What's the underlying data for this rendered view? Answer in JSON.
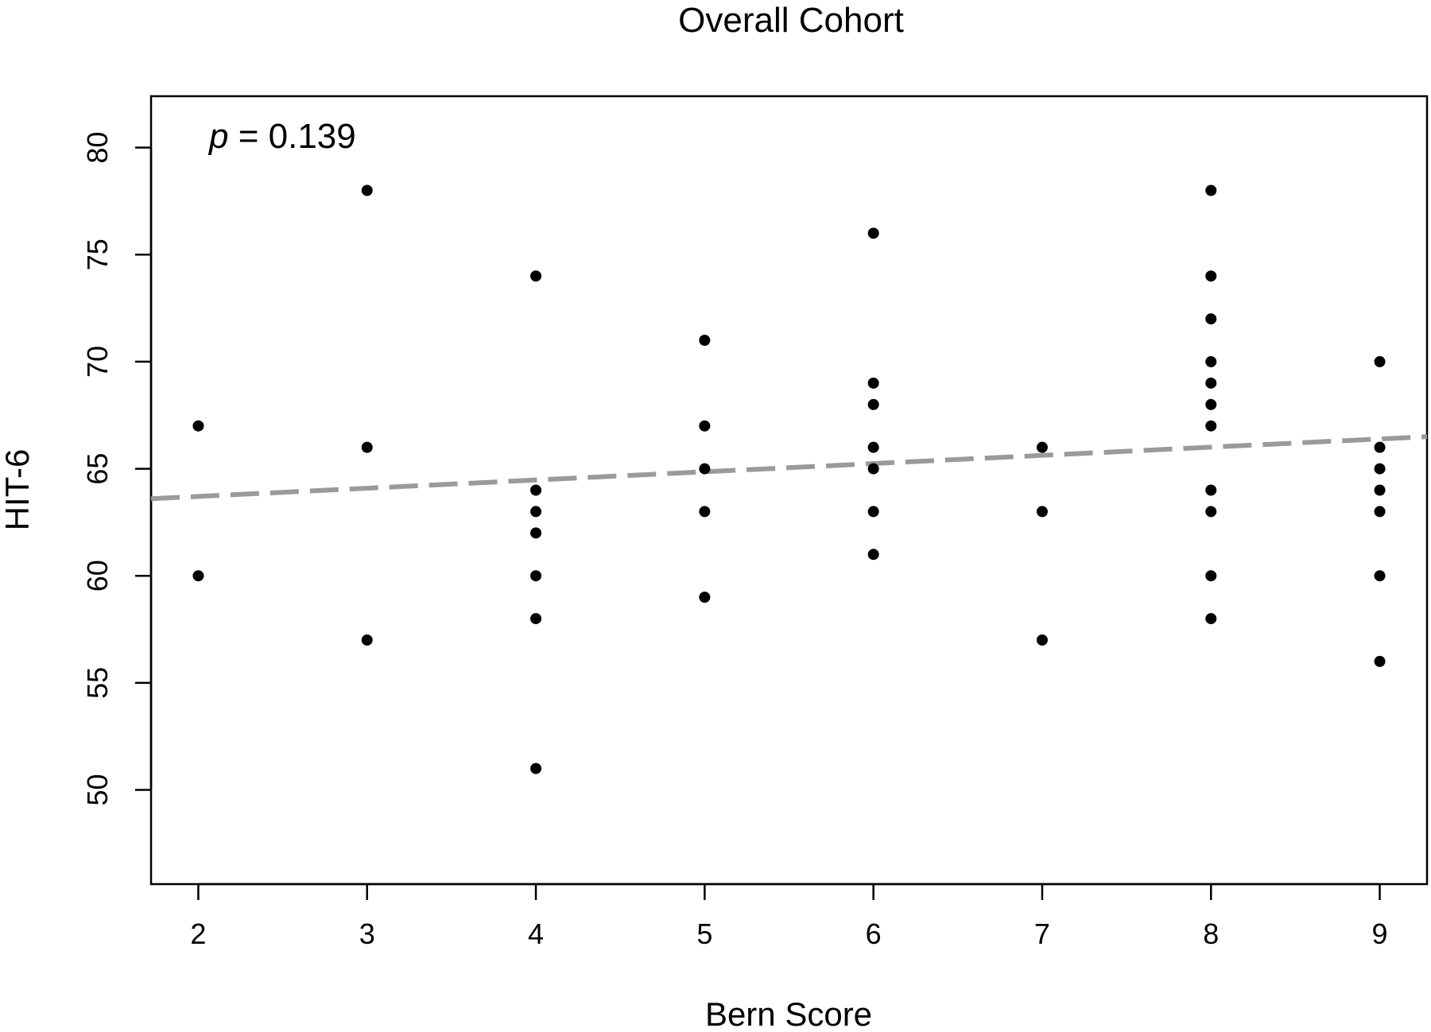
{
  "chart_data": {
    "type": "scatter",
    "title": "Overall Cohort",
    "xlabel": "Bern Score",
    "ylabel": "HIT-6",
    "annotation": {
      "italic": "p",
      "text": " = 0.139"
    },
    "xlim": [
      1.72,
      9.28
    ],
    "ylim": [
      45.6,
      82.4
    ],
    "x_ticks": [
      2,
      3,
      4,
      5,
      6,
      7,
      8,
      9
    ],
    "y_ticks": [
      50,
      55,
      60,
      65,
      70,
      75,
      80
    ],
    "grid": false,
    "trend_line": {
      "style": "dashed",
      "color": "#9a9a9a",
      "start": [
        1.72,
        63.6
      ],
      "end": [
        9.28,
        66.5
      ]
    },
    "points": [
      {
        "x": 2,
        "y": 67
      },
      {
        "x": 2,
        "y": 60
      },
      {
        "x": 3,
        "y": 78
      },
      {
        "x": 3,
        "y": 66
      },
      {
        "x": 3,
        "y": 57
      },
      {
        "x": 4,
        "y": 74
      },
      {
        "x": 4,
        "y": 64
      },
      {
        "x": 4,
        "y": 63
      },
      {
        "x": 4,
        "y": 62
      },
      {
        "x": 4,
        "y": 60
      },
      {
        "x": 4,
        "y": 58
      },
      {
        "x": 4,
        "y": 51
      },
      {
        "x": 5,
        "y": 71
      },
      {
        "x": 5,
        "y": 67
      },
      {
        "x": 5,
        "y": 65
      },
      {
        "x": 5,
        "y": 63
      },
      {
        "x": 5,
        "y": 59
      },
      {
        "x": 6,
        "y": 76
      },
      {
        "x": 6,
        "y": 69
      },
      {
        "x": 6,
        "y": 68
      },
      {
        "x": 6,
        "y": 66
      },
      {
        "x": 6,
        "y": 65
      },
      {
        "x": 6,
        "y": 63
      },
      {
        "x": 6,
        "y": 61
      },
      {
        "x": 7,
        "y": 66
      },
      {
        "x": 7,
        "y": 63
      },
      {
        "x": 7,
        "y": 57
      },
      {
        "x": 8,
        "y": 78
      },
      {
        "x": 8,
        "y": 74
      },
      {
        "x": 8,
        "y": 72
      },
      {
        "x": 8,
        "y": 70
      },
      {
        "x": 8,
        "y": 69
      },
      {
        "x": 8,
        "y": 68
      },
      {
        "x": 8,
        "y": 67
      },
      {
        "x": 8,
        "y": 64
      },
      {
        "x": 8,
        "y": 63
      },
      {
        "x": 8,
        "y": 60
      },
      {
        "x": 8,
        "y": 58
      },
      {
        "x": 9,
        "y": 70
      },
      {
        "x": 9,
        "y": 66
      },
      {
        "x": 9,
        "y": 65
      },
      {
        "x": 9,
        "y": 64
      },
      {
        "x": 9,
        "y": 63
      },
      {
        "x": 9,
        "y": 60
      },
      {
        "x": 9,
        "y": 56
      }
    ]
  }
}
